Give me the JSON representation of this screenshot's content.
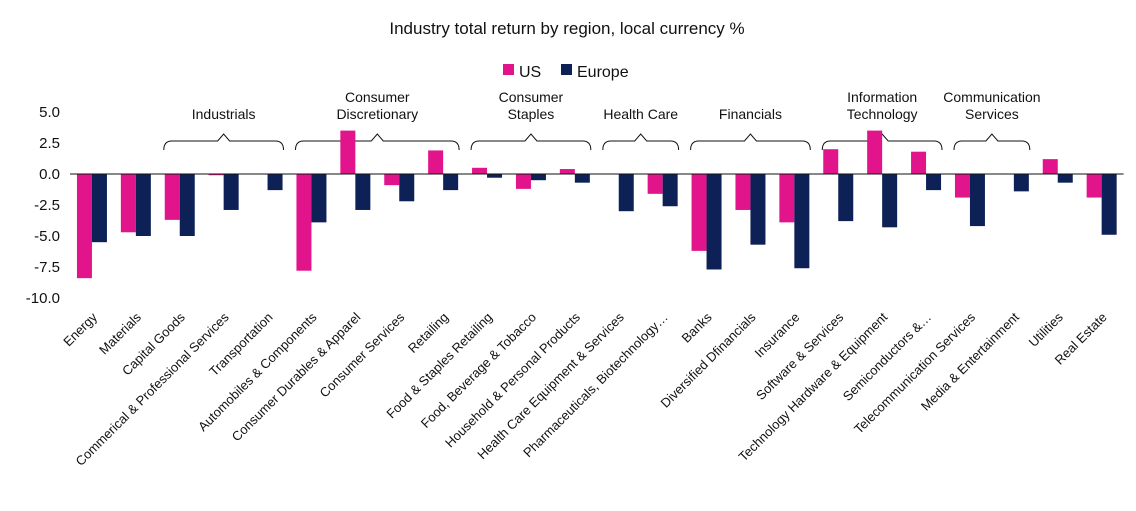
{
  "chart_data": {
    "type": "bar",
    "title": "Industry total return by region, local currency %",
    "xlabel": "",
    "ylabel": "",
    "ylim": [
      -10,
      5
    ],
    "yticks": [
      "5.0",
      "2.5",
      "0.0",
      "-2.5",
      "-5.0",
      "-7.5",
      "-10.0"
    ],
    "ytick_values": [
      5,
      2.5,
      0,
      -2.5,
      -5,
      -7.5,
      -10
    ],
    "grid": false,
    "legend_position": "top-center",
    "categories": [
      "Energy",
      "Materials",
      "Capital Goods",
      "Commerical & Professional Services",
      "Transportation",
      "Automobiles & Components",
      "Consumer Durables & Apparel",
      "Consumer Services",
      "Retailing",
      "Food & Staples Retailing",
      "Food, Beverage & Tobacco",
      "Household & Personal Products",
      "Health Care Equipment & Services",
      "Pharmaceuticals, Biotechnology…",
      "Banks",
      "Diversified Dfinancials",
      "Insurance",
      "Software & Services",
      "Technology Hardware & Equipment",
      "Semiconductors &…",
      "Telecommunication Services",
      "Media & Entertainment",
      "Utilities",
      "Real Estate"
    ],
    "series": [
      {
        "name": "US",
        "color": "#e2148c",
        "values": [
          -8.4,
          -4.7,
          -3.7,
          -0.1,
          0.0,
          -7.8,
          3.5,
          -0.9,
          1.9,
          0.5,
          -1.2,
          0.4,
          0.0,
          -1.6,
          -6.2,
          -2.9,
          -3.9,
          2.0,
          3.5,
          1.8,
          -1.9,
          0.0,
          1.2,
          -1.9
        ]
      },
      {
        "name": "Europe",
        "color": "#0d2157",
        "values": [
          -5.5,
          -5.0,
          -5.0,
          -2.9,
          -1.3,
          -3.9,
          -2.9,
          -2.2,
          -1.3,
          -0.3,
          -0.5,
          -0.7,
          -3.0,
          -2.6,
          -7.7,
          -5.7,
          -7.6,
          -3.8,
          -4.3,
          -1.3,
          -4.2,
          -1.4,
          -0.7,
          -4.9
        ]
      }
    ],
    "groups": [
      {
        "lines": [
          "Industrials"
        ],
        "start": 2,
        "end": 4
      },
      {
        "lines": [
          "Consumer",
          "Discretionary"
        ],
        "start": 5,
        "end": 8
      },
      {
        "lines": [
          "Consumer",
          "Staples"
        ],
        "start": 9,
        "end": 11
      },
      {
        "lines": [
          "Health Care"
        ],
        "start": 12,
        "end": 13
      },
      {
        "lines": [
          "Financials"
        ],
        "start": 14,
        "end": 16
      },
      {
        "lines": [
          "Information",
          "Technology"
        ],
        "start": 17,
        "end": 19
      },
      {
        "lines": [
          "Communication",
          "Services"
        ],
        "start": 20,
        "end": 21
      }
    ]
  }
}
